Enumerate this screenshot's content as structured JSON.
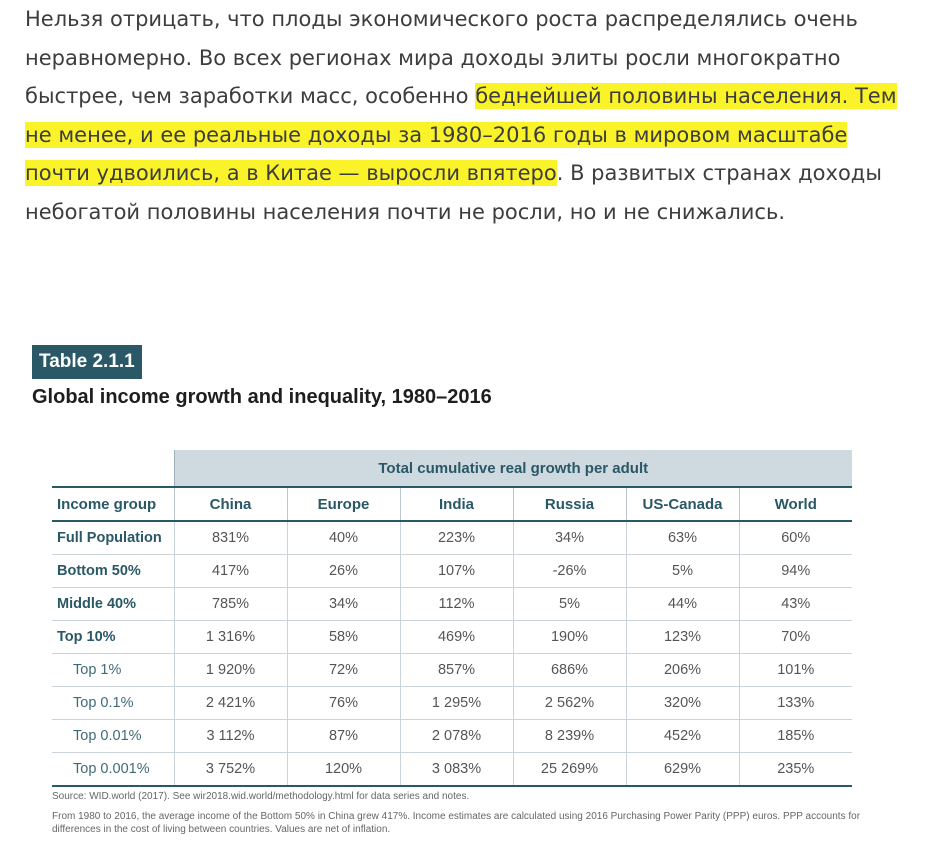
{
  "article": {
    "text_before": "Нельзя отрицать, что плоды экономического роста распределялись очень неравномерно. Во всех регионах мира доходы элиты росли многократно быстрее, чем заработки масс, особенно ",
    "highlighted": "беднейшей половины населения. Тем не менее, и ее реальные доходы за 1980–2016 годы в мировом масштабе почти удвоились, а в Китае — выросли впятеро",
    "text_after": ". В развитых странах доходы небогатой половины населения почти не росли, но и не снижались."
  },
  "figure": {
    "label": "Table 2.1.1",
    "title": "Global income growth and inequality, 1980–2016",
    "span_header": "Total cumulative real growth per adult",
    "columns": [
      "Income group",
      "China",
      "Europe",
      "India",
      "Russia",
      "US-Canada",
      "World"
    ],
    "rows": [
      {
        "group": "Full Population",
        "values": [
          "831%",
          "40%",
          "223%",
          "34%",
          "63%",
          "60%"
        ]
      },
      {
        "group": "Bottom 50%",
        "values": [
          "417%",
          "26%",
          "107%",
          "-26%",
          "5%",
          "94%"
        ]
      },
      {
        "group": "Middle 40%",
        "values": [
          "785%",
          "34%",
          "112%",
          "5%",
          "44%",
          "43%"
        ]
      },
      {
        "group": "Top 10%",
        "values": [
          "1 316%",
          "58%",
          "469%",
          "190%",
          "123%",
          "70%"
        ]
      },
      {
        "group": "Top 1%",
        "values": [
          "1 920%",
          "72%",
          "857%",
          "686%",
          "206%",
          "101%"
        ]
      },
      {
        "group": "Top 0.1%",
        "values": [
          "2 421%",
          "76%",
          "1 295%",
          "2 562%",
          "320%",
          "133%"
        ]
      },
      {
        "group": "Top 0.01%",
        "values": [
          "3 112%",
          "87%",
          "2 078%",
          "8 239%",
          "452%",
          "185%"
        ]
      },
      {
        "group": "Top 0.001%",
        "values": [
          "3 752%",
          "120%",
          "3 083%",
          "25 269%",
          "629%",
          "235%"
        ]
      }
    ],
    "source": "Source: WID.world (2017). See wir2018.wid.world/methodology.html for data series and notes.",
    "note": "From 1980 to 2016, the average income of the Bottom 50% in China grew 417%. Income estimates are calculated using 2016 Purchasing Power Parity (PPP) euros. PPP accounts for differences in the cost of living between countries. Values are net of inflation."
  },
  "colors": {
    "highlight": "#fbf32a",
    "accent": "#2a5866",
    "header_band": "#ced9e0"
  }
}
